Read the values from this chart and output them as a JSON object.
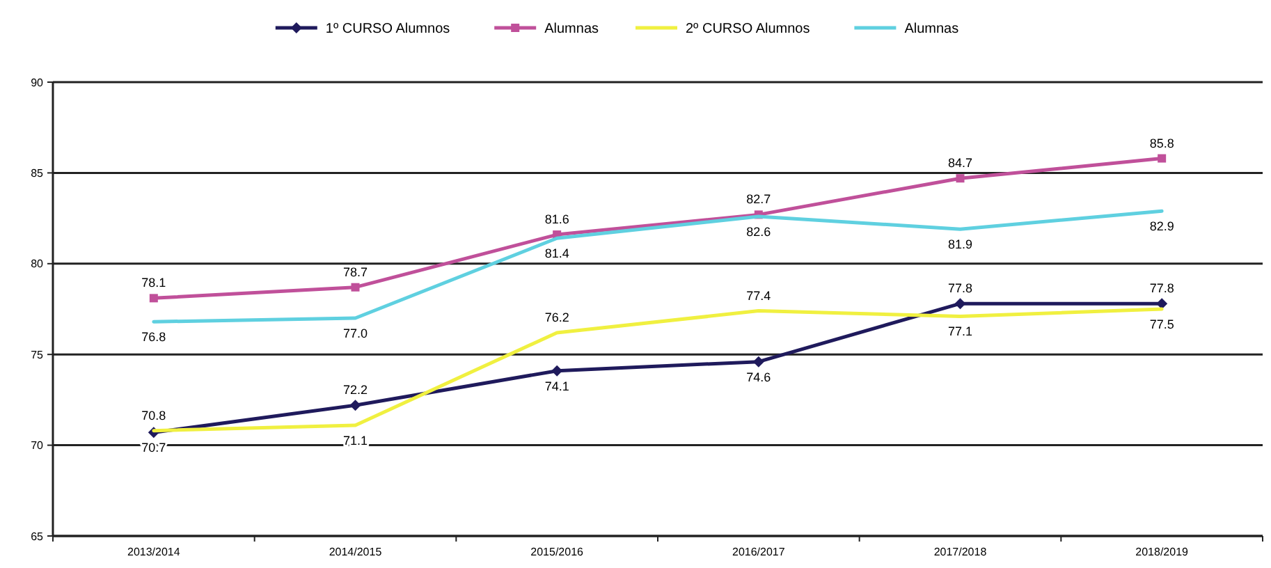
{
  "chart_data": {
    "type": "line",
    "categories": [
      "2013/2014",
      "2014/2015",
      "2015/2016",
      "2016/2017",
      "2017/2018",
      "2018/2019"
    ],
    "series": [
      {
        "name": "1º CURSO Alumnos",
        "color": "#1f1a5c",
        "marker": "diamond",
        "values": [
          70.7,
          72.2,
          74.1,
          74.6,
          77.8,
          77.8
        ],
        "value_labels": [
          "70.7",
          "72.2",
          "74.1",
          "74.6",
          "77.8",
          "77.8"
        ]
      },
      {
        "name": "Alumnas",
        "color": "#c0509a",
        "marker": "square",
        "values": [
          78.1,
          78.7,
          81.6,
          82.7,
          84.7,
          85.8
        ],
        "value_labels": [
          "78.1",
          "78.7",
          "81.6",
          "82.7",
          "84.7",
          "85.8"
        ]
      },
      {
        "name": "2º CURSO Alumnos",
        "color": "#f0f040",
        "marker": "none",
        "values": [
          70.8,
          71.1,
          76.2,
          77.4,
          77.1,
          77.5
        ],
        "value_labels": [
          "70.8",
          "71.1",
          "76.2",
          "77.4",
          "77.1",
          "77.5"
        ]
      },
      {
        "name": "Alumnas",
        "color": "#5fd0e0",
        "marker": "none",
        "values": [
          76.8,
          77.0,
          81.4,
          82.6,
          81.9,
          82.9
        ],
        "value_labels": [
          "76.8",
          "77.0",
          "81.4",
          "82.6",
          "81.9",
          "82.9"
        ]
      }
    ],
    "ylim": [
      65,
      90
    ],
    "yticks": [
      65,
      70,
      75,
      80,
      85,
      90
    ],
    "grid": "y",
    "legend": "top"
  }
}
